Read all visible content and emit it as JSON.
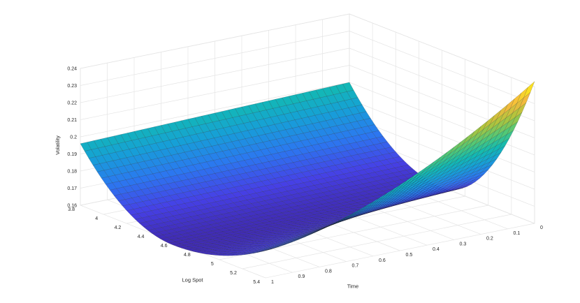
{
  "chart_data": {
    "type": "surface",
    "xlabel": "Log Spot",
    "ylabel": "Time",
    "zlabel": "Volatility",
    "x_ticks": [
      "3.8",
      "4",
      "4.2",
      "4.4",
      "4.6",
      "4.8",
      "5",
      "5.2",
      "5.4"
    ],
    "y_ticks": [
      "0",
      "0.1",
      "0.2",
      "0.3",
      "0.4",
      "0.5",
      "0.6",
      "0.7",
      "0.8",
      "0.9",
      "1"
    ],
    "z_ticks": [
      "0.16",
      "0.17",
      "0.18",
      "0.19",
      "0.2",
      "0.21",
      "0.22",
      "0.23",
      "0.24"
    ],
    "xlim": [
      3.8,
      5.4
    ],
    "ylim": [
      0,
      1
    ],
    "zlim": [
      0.16,
      0.24
    ],
    "grid": true,
    "colormap": "parula",
    "surface_model": {
      "description_values": {
        "vertex_log_spot": 4.6,
        "vol_min_at_time_1": 0.158,
        "vol_min_at_time_0": 0.16,
        "vol_at_3.8_time_1": 0.196,
        "vol_at_5.4_time_0": 0.243,
        "vol_at_3.8_time_0": 0.2
      }
    },
    "corner_values": [
      {
        "log_spot": 3.8,
        "time": 1,
        "volatility": 0.196
      },
      {
        "log_spot": 5.4,
        "time": 1,
        "volatility": 0.176
      },
      {
        "log_spot": 3.8,
        "time": 0,
        "volatility": 0.2
      },
      {
        "log_spot": 5.4,
        "time": 0,
        "volatility": 0.243
      },
      {
        "log_spot": 4.6,
        "time": 1,
        "volatility": 0.158
      },
      {
        "log_spot": 4.6,
        "time": 0,
        "volatility": 0.16
      }
    ]
  }
}
